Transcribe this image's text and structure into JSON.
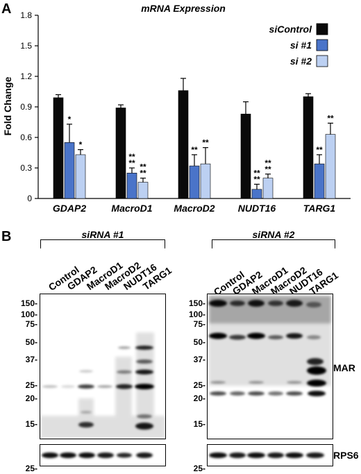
{
  "panel_a_letter": "A",
  "panel_b_letter": "B",
  "chart_data": {
    "type": "bar",
    "title": "mRNA Expression",
    "ylabel": "Fold Change",
    "xlabel": "",
    "ylim": [
      0,
      1.8
    ],
    "yticks": [
      "0",
      "0.3",
      "0.6",
      "0.9",
      "1.2",
      "1.5",
      "1.8"
    ],
    "categories": [
      "GDAP2",
      "MacroD1",
      "MacroD2",
      "NUDT16",
      "TARG1"
    ],
    "series": [
      {
        "name": "siControl",
        "color": "#0a0a0a",
        "values": [
          0.99,
          0.89,
          1.06,
          0.83,
          1.0
        ],
        "errors": [
          0.03,
          0.03,
          0.12,
          0.12,
          0.03
        ],
        "stars": [
          "",
          "",
          "",
          "",
          ""
        ]
      },
      {
        "name": "si #1",
        "color": "#4a74c9",
        "values": [
          0.55,
          0.25,
          0.32,
          0.09,
          0.34
        ],
        "errors": [
          0.18,
          0.05,
          0.11,
          0.05,
          0.09
        ],
        "stars": [
          "*",
          "**\n**",
          "**",
          "**\n**",
          "**"
        ]
      },
      {
        "name": "si #2",
        "color": "#bcd0f2",
        "values": [
          0.43,
          0.16,
          0.34,
          0.2,
          0.63
        ],
        "errors": [
          0.05,
          0.04,
          0.16,
          0.04,
          0.11
        ],
        "stars": [
          "*",
          "**\n**",
          "**",
          "**\n**",
          "**"
        ]
      }
    ],
    "legend_position": "top-right",
    "grid": false
  },
  "blots": {
    "left": {
      "bracket_label": "siRNA #1",
      "lanes": [
        "Control",
        "GDAP2",
        "MacroD1",
        "MacroD2",
        "NUDT16",
        "TARG1"
      ],
      "mw_markers_main": [
        "150-",
        "100-",
        "75-",
        "50-",
        "37-",
        "25-",
        "20-",
        "15-"
      ],
      "mw_markers_loading": [
        "25-"
      ]
    },
    "right": {
      "bracket_label": "siRNA #2",
      "lanes": [
        "Control",
        "GDAP2",
        "MacroD1",
        "MacroD2",
        "NUDT16",
        "TARG1"
      ],
      "mw_markers_main": [
        "150-",
        "100-",
        "75-",
        "50-",
        "37-",
        "25-",
        "20-",
        "15-"
      ],
      "mw_markers_loading": [
        "25-"
      ]
    },
    "main_label": "MAR",
    "loading_label": "RPS6"
  }
}
